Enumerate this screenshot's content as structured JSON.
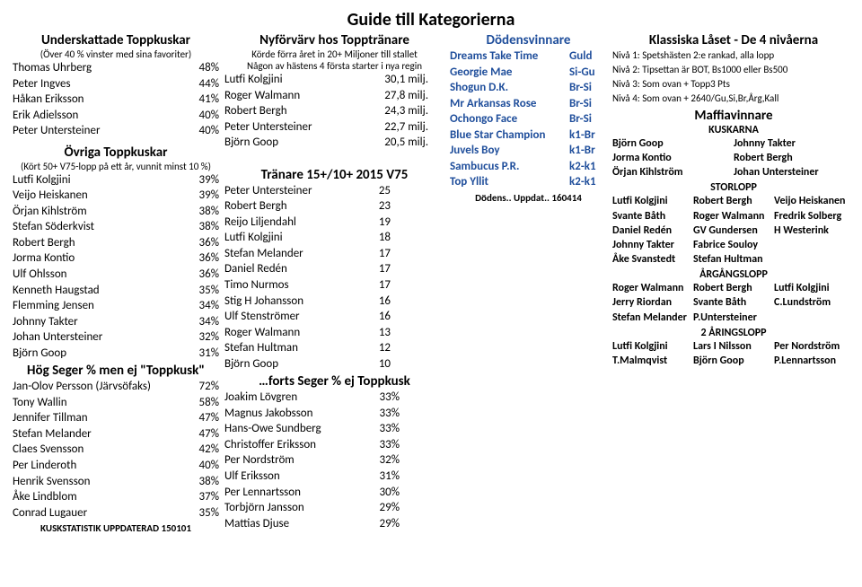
{
  "title": "Guide till Kategorierna",
  "col1": {
    "underHead": "Underskattade Toppkuskar",
    "underSub": "(Över 40 % vinster med sina favoriter)",
    "under": [
      {
        "n": "Thomas Uhrberg",
        "v": "48%"
      },
      {
        "n": "Peter Ingves",
        "v": "44%"
      },
      {
        "n": "Håkan Eriksson",
        "v": "41%"
      },
      {
        "n": "Erik Adielsson",
        "v": "40%"
      },
      {
        "n": "Peter Untersteiner",
        "v": "40%"
      }
    ],
    "ovrigaHead": "Övriga Toppkuskar",
    "ovrigaSub": "(Kört 50+ V75-lopp på ett år, vunnit minst 10 %)",
    "ovriga": [
      {
        "n": "Lutfi Kolgjini",
        "v": "39%"
      },
      {
        "n": "Veijo Heiskanen",
        "v": "39%"
      },
      {
        "n": "Örjan Kihlström",
        "v": "38%"
      },
      {
        "n": "Stefan Söderkvist",
        "v": "38%"
      },
      {
        "n": "Robert Bergh",
        "v": "36%"
      },
      {
        "n": "Jorma Kontio",
        "v": "36%"
      },
      {
        "n": "Ulf Ohlsson",
        "v": "36%"
      },
      {
        "n": "Kenneth Haugstad",
        "v": "35%"
      },
      {
        "n": "Flemming Jensen",
        "v": "34%"
      },
      {
        "n": "Johnny Takter",
        "v": "34%"
      },
      {
        "n": "Johan Untersteiner",
        "v": "32%"
      },
      {
        "n": "Björn Goop",
        "v": "31%"
      }
    ],
    "hogHead": "Hög Seger % men ej \"Toppkusk\"",
    "hog": [
      {
        "n": "Jan-Olov Persson (Järvsöfaks)",
        "v": "72%"
      },
      {
        "n": "Tony Wallin",
        "v": "58%"
      },
      {
        "n": "Jennifer Tillman",
        "v": "47%"
      },
      {
        "n": "Stefan Melander",
        "v": "47%"
      },
      {
        "n": "Claes Svensson",
        "v": "42%"
      },
      {
        "n": "Per Linderoth",
        "v": "40%"
      },
      {
        "n": "Henrik Svensson",
        "v": "38%"
      },
      {
        "n": "Åke Lindblom",
        "v": "37%"
      },
      {
        "n": "Conrad Lugauer",
        "v": "35%"
      }
    ],
    "foot": "KUSKSTATISTIK UPPDATERAD 150101"
  },
  "col2": {
    "nyHead": "Nyförvärv hos Topptränare",
    "nySub1": "Körde förra året in 20+ Miljoner till stallet",
    "nySub2": "Någon av hästens 4 första starter i nya regin",
    "ny": [
      {
        "n": "Lutfi Kolgjini",
        "v": "30,1 milj."
      },
      {
        "n": "Roger Walmann",
        "v": "27,8 milj."
      },
      {
        "n": "Robert Bergh",
        "v": "24,3 milj."
      },
      {
        "n": "Peter Untersteiner",
        "v": "22,7 milj."
      },
      {
        "n": "Björn Goop",
        "v": "20,5 milj."
      }
    ],
    "trHead": "Tränare 15+/10+ 2015 V75",
    "tr": [
      {
        "n": "Peter Untersteiner",
        "v": "25"
      },
      {
        "n": "Robert Bergh",
        "v": "23"
      },
      {
        "n": "Reijo Liljendahl",
        "v": "19"
      },
      {
        "n": "Lutfi Kolgjini",
        "v": "18"
      },
      {
        "n": "Stefan Melander",
        "v": "17"
      },
      {
        "n": "Daniel Redén",
        "v": "17"
      },
      {
        "n": "Timo Nurmos",
        "v": "17"
      },
      {
        "n": "Stig H Johansson",
        "v": "16"
      },
      {
        "n": "Ulf Stenströmer",
        "v": "16"
      },
      {
        "n": "Roger Walmann",
        "v": "13"
      },
      {
        "n": "Stefan Hultman",
        "v": "12"
      },
      {
        "n": "Björn Goop",
        "v": "10"
      }
    ],
    "fortsHead": "…forts Seger % ej Toppkusk",
    "forts": [
      {
        "n": "Joakim Lövgren",
        "v": "33%"
      },
      {
        "n": "Magnus Jakobsson",
        "v": "33%"
      },
      {
        "n": "Hans-Owe Sundberg",
        "v": "33%"
      },
      {
        "n": "Christoffer Eriksson",
        "v": "33%"
      },
      {
        "n": "Per Nordström",
        "v": "32%"
      },
      {
        "n": "Ulf Eriksson",
        "v": "31%"
      },
      {
        "n": "Per Lennartsson",
        "v": "30%"
      },
      {
        "n": "Torbjörn Jansson",
        "v": "29%"
      },
      {
        "n": "Mattias Djuse",
        "v": "29%"
      }
    ]
  },
  "col3": {
    "dHead": "Dödensvinnare",
    "d": [
      {
        "n": "Dreams Take Time",
        "v": "Guld"
      },
      {
        "n": "Georgie Mae",
        "v": "Si-Gu"
      },
      {
        "n": "Shogun D.K.",
        "v": "Br-Si"
      },
      {
        "n": "Mr Arkansas Rose",
        "v": "Br-Si"
      },
      {
        "n": "Ochongo Face",
        "v": "Br-Si"
      },
      {
        "n": "Blue Star Champion",
        "v": "k1-Br"
      },
      {
        "n": "Juvels Boy",
        "v": "k1-Br"
      },
      {
        "n": "Sambucus P.R.",
        "v": "k2-k1"
      },
      {
        "n": "Top Yllit",
        "v": "k2-k1"
      }
    ],
    "uppd": "Dödens.. Uppdat.. 160414"
  },
  "col4": {
    "klHead": "Klassiska Låset - De 4 nivåerna",
    "kl": [
      "Nivå 1: Spetshästen 2:e rankad, alla lopp",
      "Nivå 2: Tipsettan är BOT, Bs1000 eller Bs500",
      "Nivå 3: Som ovan + Topp3 Pts",
      "Nivå 4: Som ovan + 2640/Gu,Si,Br,Årg,Kall"
    ],
    "mafHead": "Maffiavinnare",
    "kuskHead": "KUSKARNA",
    "kusk": [
      {
        "a": "Björn Goop",
        "b": "Johnny Takter"
      },
      {
        "a": "Jorma Kontio",
        "b": "Robert Bergh"
      },
      {
        "a": "Örjan Kihlström",
        "b": "Johan Untersteiner"
      }
    ],
    "stoHead": "STORLOPP",
    "sto": [
      {
        "a": "Lutfi Kolgjini",
        "b": "Robert Bergh",
        "c": "Veijo Heiskanen"
      },
      {
        "a": "Svante Båth",
        "b": "Roger Walmann",
        "c": "Fredrik Solberg"
      },
      {
        "a": "Daniel Redén",
        "b": "GV Gundersen",
        "c": "H Westerink"
      },
      {
        "a": "Johnny Takter",
        "b": "Fabrice Souloy",
        "c": ""
      },
      {
        "a": "Åke Svanstedt",
        "b": "Stefan Hultman",
        "c": ""
      }
    ],
    "argHead": "ÅRGÅNGSLOPP",
    "arg": [
      {
        "a": "Roger Walmann",
        "b": "Robert Bergh",
        "c": "Lutfi Kolgjini"
      },
      {
        "a": "Jerry Riordan",
        "b": "Svante Båth",
        "c": "C.Lundström"
      },
      {
        "a": "Stefan Melander",
        "b": "P.Untersteiner",
        "c": ""
      }
    ],
    "tvaHead": "2 ÅRINGSLOPP",
    "tva": [
      {
        "a": "Lutfi Kolgjini",
        "b": "Lars I Nilsson",
        "c": "Per Nordström"
      },
      {
        "a": "T.Malmqvist",
        "b": "Björn Goop",
        "c": "P.Lennartsson"
      }
    ]
  }
}
